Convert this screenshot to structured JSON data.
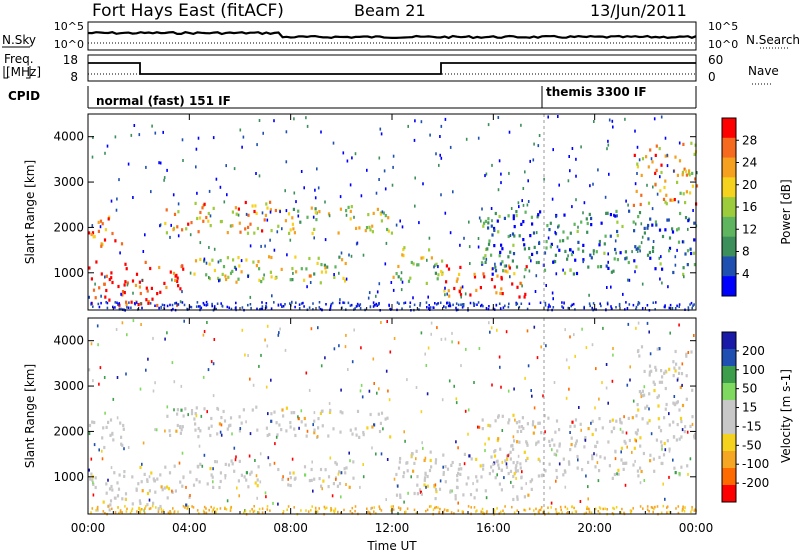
{
  "header": {
    "station": "Fort Hays East (fitACF)",
    "beam": "Beam 21",
    "date": "13/Jun/2011"
  },
  "side_labels": {
    "nsky": "N.Sky",
    "freq_line1": "Freq.",
    "freq_line2": "[MHz]",
    "cpid": "CPID",
    "nsearch": "N.Search",
    "nave": "Nave"
  },
  "small_panels": {
    "noise_ticks_left": [
      "10^5",
      "10^0"
    ],
    "noise_ticks_right": [
      "10^5",
      "10^0"
    ],
    "freq_ticks": [
      "18",
      "8"
    ],
    "nave_ticks": [
      "60",
      "0"
    ],
    "cpid_modes": [
      {
        "label": "normal (fast) 151 IF",
        "start_hour": 0
      },
      {
        "label": "themis 3300 IF",
        "start_hour": 18
      }
    ]
  },
  "colors": {
    "power_scale": [
      "#0000ff",
      "#1f4fb0",
      "#3c8f5a",
      "#5fb45f",
      "#9ccc3c",
      "#f5d21e",
      "#f5a01e",
      "#f56a1e",
      "#ff0000"
    ],
    "velocity_scale": [
      "#ff0000",
      "#ff6a00",
      "#f5a623",
      "#f5d21e",
      "#c8c8c8",
      "#c8c8c8",
      "#7fd85f",
      "#3c9e4a",
      "#1f4fb0",
      "#1a1aa8"
    ]
  },
  "chart_data": [
    {
      "type": "heatmap",
      "name": "power",
      "ylabel": "Slant Range [km]",
      "colorbar_label": "Power [dB]",
      "colorbar_ticks": [
        "28",
        "24",
        "20",
        "16",
        "12",
        "8",
        "4"
      ],
      "ylim": [
        180,
        4500
      ],
      "yticks": [
        "4000",
        "3000",
        "2000",
        "1000"
      ],
      "regions": [
        {
          "t0": 0.0,
          "t1": 3.8,
          "r0": 300,
          "r1": 1300,
          "value_db": 28
        },
        {
          "t0": 0.0,
          "t1": 1.5,
          "r0": 1600,
          "r1": 2300,
          "value_db": 24
        },
        {
          "t0": 3.0,
          "t1": 8.0,
          "r0": 1900,
          "r1": 2600,
          "value_db": 20
        },
        {
          "t0": 4.0,
          "t1": 10.5,
          "r0": 800,
          "r1": 1400,
          "value_db": 16
        },
        {
          "t0": 8.0,
          "t1": 12.0,
          "r0": 1900,
          "r1": 2500,
          "value_db": 16
        },
        {
          "t0": 12.0,
          "t1": 14.0,
          "r0": 800,
          "r1": 1600,
          "value_db": 16
        },
        {
          "t0": 14.0,
          "t1": 17.5,
          "r0": 500,
          "r1": 1200,
          "value_db": 26
        },
        {
          "t0": 15.5,
          "t1": 24.0,
          "r0": 1000,
          "r1": 2400,
          "value_db": 8
        },
        {
          "t0": 21.5,
          "t1": 24.0,
          "r0": 2500,
          "r1": 3900,
          "value_db": 20
        }
      ]
    },
    {
      "type": "heatmap",
      "name": "velocity",
      "ylabel": "Slant Range [km]",
      "xlabel": "Time UT",
      "colorbar_label": "Velocity [m s-1]",
      "colorbar_ticks": [
        "200",
        "100",
        "50",
        "15",
        "-15",
        "-50",
        "-100",
        "-200"
      ],
      "ylim": [
        180,
        4500
      ],
      "yticks": [
        "4000",
        "3000",
        "2000",
        "1000"
      ],
      "xticks": [
        "00:00",
        "04:00",
        "08:00",
        "12:00",
        "16:00",
        "20:00",
        "00:00"
      ],
      "xlim": [
        0,
        24
      ],
      "regions": [
        {
          "t0": 0.0,
          "t1": 4.0,
          "r0": 300,
          "r1": 1300,
          "value_ms": 0
        },
        {
          "t0": 0.0,
          "t1": 1.5,
          "r0": 1600,
          "r1": 2300,
          "value_ms": 0
        },
        {
          "t0": 3.0,
          "t1": 8.0,
          "r0": 1900,
          "r1": 2600,
          "value_ms": 0
        },
        {
          "t0": 4.0,
          "t1": 10.5,
          "r0": 800,
          "r1": 1400,
          "value_ms": 0
        },
        {
          "t0": 8.0,
          "t1": 12.0,
          "r0": 1900,
          "r1": 2500,
          "value_ms": 10
        },
        {
          "t0": 12.0,
          "t1": 17.5,
          "r0": 500,
          "r1": 1600,
          "value_ms": 0
        },
        {
          "t0": 15.5,
          "t1": 24.0,
          "r0": 1000,
          "r1": 2400,
          "value_ms": 0
        },
        {
          "t0": 21.5,
          "t1": 24.0,
          "r0": 2500,
          "r1": 3900,
          "value_ms": 0
        }
      ]
    }
  ]
}
